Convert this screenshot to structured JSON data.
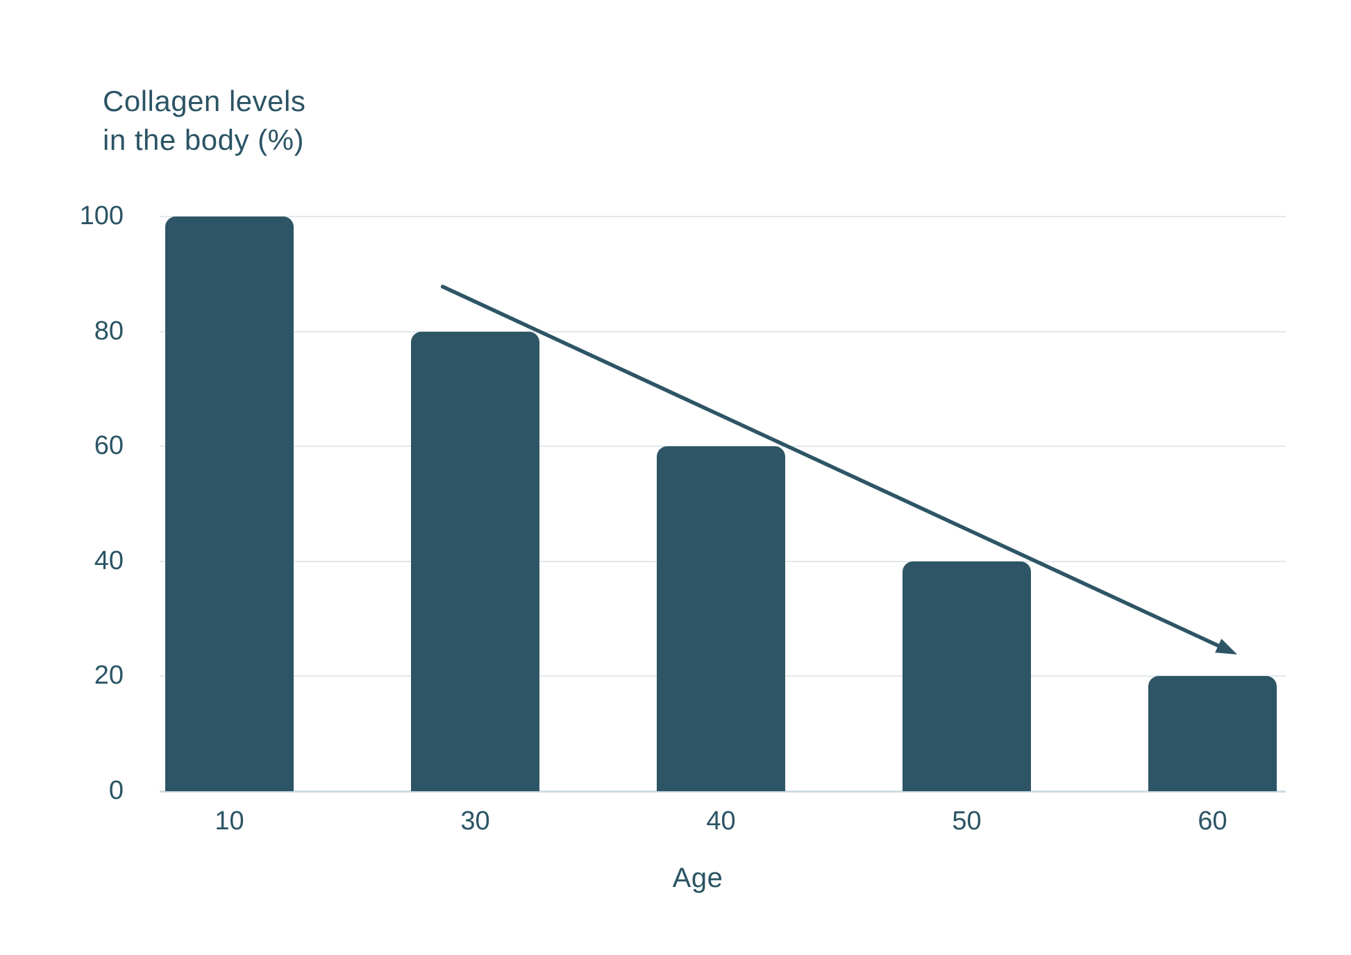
{
  "chart": {
    "title_lines": [
      "Collagen levels",
      "in the body (%)"
    ],
    "xlabel": "Age"
  },
  "chart_data": {
    "type": "bar",
    "title": "Collagen levels in the body (%)",
    "xlabel": "Age",
    "ylabel": "Collagen levels in the body (%)",
    "categories": [
      "10",
      "30",
      "40",
      "50",
      "60"
    ],
    "values": [
      100,
      80,
      60,
      40,
      20
    ],
    "yticks": [
      0,
      20,
      40,
      60,
      80,
      100
    ],
    "ylim": [
      0,
      100
    ],
    "grid": "horizontal-only",
    "legend": "none",
    "bar_style": "rounded-top",
    "annotation": {
      "type": "trend-arrow",
      "direction": "declining",
      "from": {
        "x_frac": 0.249,
        "value": 87.8
      },
      "to": {
        "x_frac": 0.962,
        "value": 23.8
      }
    },
    "colors": {
      "bar": "#2d5565",
      "text": "#2b5464",
      "gridline": "#e2e8eb",
      "baseline": "#ccdce2",
      "arrow": "#2d5565",
      "background": "#ffffff"
    }
  }
}
